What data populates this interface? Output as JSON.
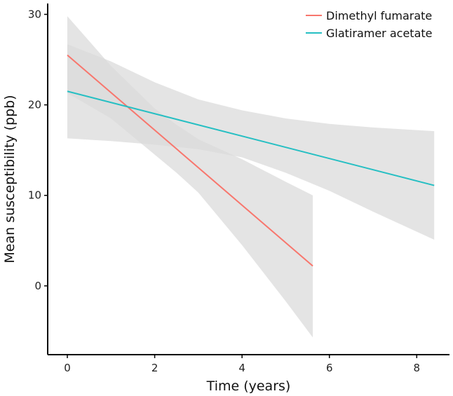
{
  "chart_data": {
    "type": "line",
    "xlabel": "Time (years)",
    "ylabel": "Mean susceptibility (ppb)",
    "xlim": [
      -0.45,
      8.75
    ],
    "ylim": [
      -7.6,
      31.2
    ],
    "x_ticks": [
      0,
      2,
      4,
      6,
      8
    ],
    "y_ticks": [
      0,
      10,
      20,
      30
    ],
    "grid": false,
    "legend_position": "top-right",
    "confidence_band_color": "#d9d9d9",
    "series": [
      {
        "name": "Dimethyl fumarate",
        "color": "#f8766d",
        "x": [
          0,
          5.62
        ],
        "y": [
          25.5,
          2.2
        ],
        "band": {
          "x": [
            0,
            1,
            2,
            2.5,
            3,
            4,
            5,
            5.62
          ],
          "upper": [
            29.8,
            24.3,
            19.6,
            17.8,
            16.2,
            14.0,
            11.5,
            10.0
          ],
          "lower": [
            21.3,
            18.5,
            14.5,
            12.5,
            10.3,
            4.5,
            -1.7,
            -5.7
          ]
        }
      },
      {
        "name": "Glatiramer acetate",
        "color": "#26bfc3",
        "x": [
          0,
          8.4
        ],
        "y": [
          21.5,
          11.1
        ],
        "band": {
          "x": [
            0,
            1,
            2,
            3,
            4,
            5,
            6,
            7,
            8.4
          ],
          "upper": [
            26.7,
            24.8,
            22.5,
            20.6,
            19.4,
            18.5,
            17.9,
            17.5,
            17.1
          ],
          "lower": [
            16.3,
            16.0,
            15.6,
            15.1,
            14.2,
            12.5,
            10.5,
            8.2,
            5.1
          ]
        }
      }
    ]
  }
}
